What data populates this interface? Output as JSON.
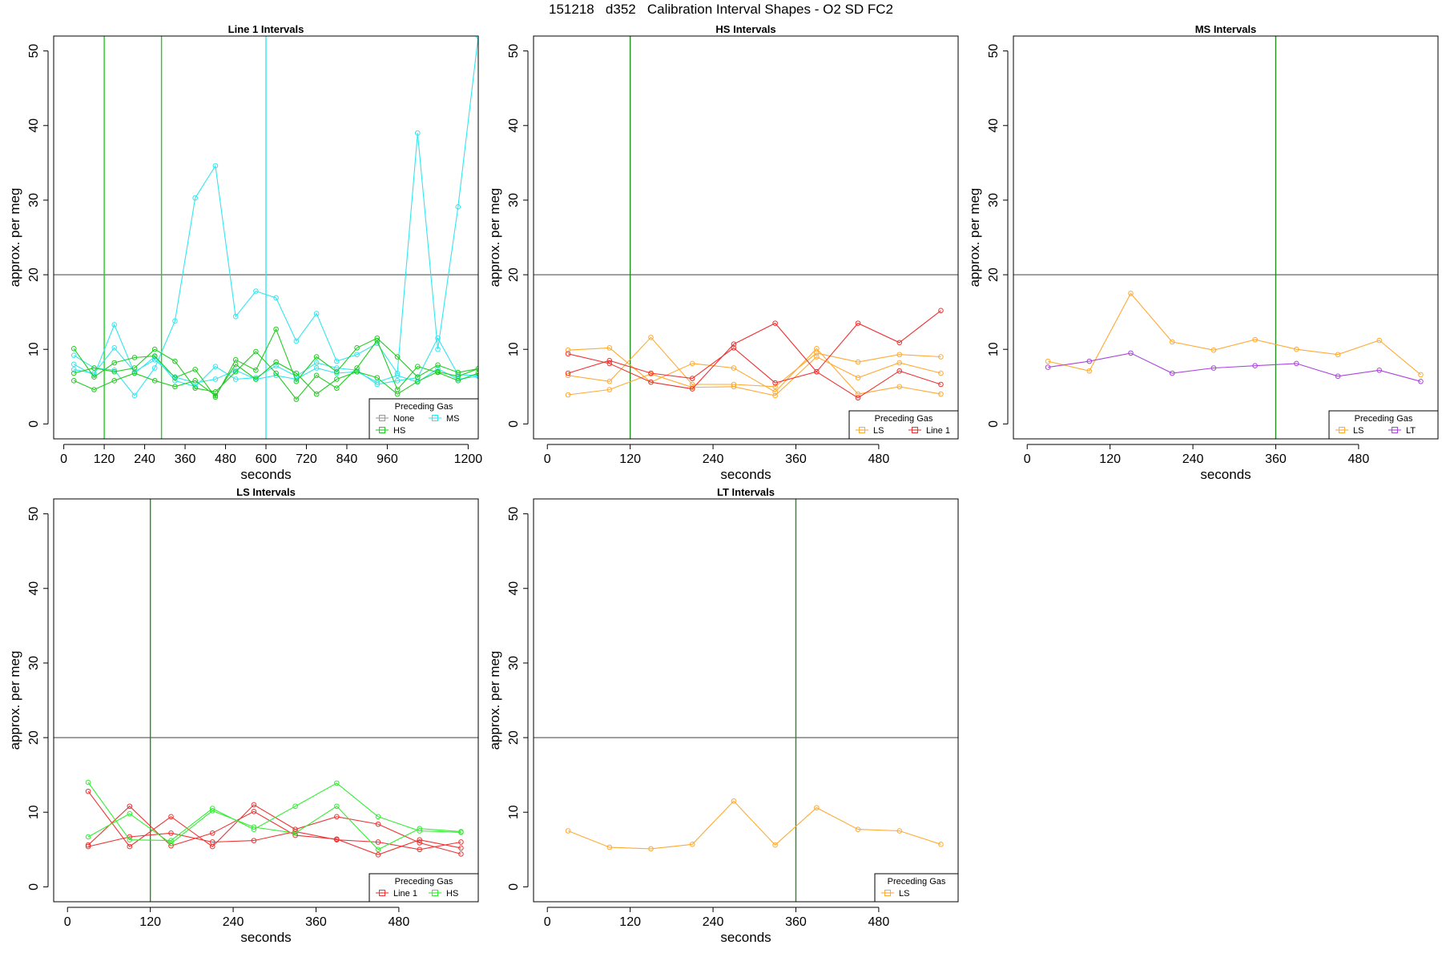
{
  "figure": {
    "title": "151218   d352   Calibration Interval Shapes - O2 SD FC2"
  },
  "chart_data": [
    {
      "type": "line",
      "title": "Line 1 Intervals",
      "xlabel": "seconds",
      "ylabel": "approx. per meg",
      "xlim": [
        -30,
        1230
      ],
      "ylim": [
        -2,
        52
      ],
      "xticks": [
        0,
        120,
        240,
        360,
        480,
        600,
        720,
        840,
        960,
        1200
      ],
      "yticks": [
        0,
        10,
        20,
        30,
        40,
        50
      ],
      "grid": false,
      "hline": 20,
      "vlines": [
        {
          "x": 120,
          "color": "#22cc22"
        },
        {
          "x": 290,
          "color": "#22cc22"
        },
        {
          "x": 600,
          "color": "#33e6ee"
        }
      ],
      "legend": {
        "title": "Preceding Gas",
        "position": "bottom-right",
        "entries": [
          {
            "label": "None",
            "color": "#999999"
          },
          {
            "label": "MS",
            "color": "#33e6ee"
          },
          {
            "label": "HS",
            "color": "#22cc22"
          }
        ]
      },
      "series": [
        {
          "color": "#33e6ee",
          "x": [
            30,
            90,
            150,
            210,
            270,
            330,
            390,
            450,
            510,
            570,
            630,
            690,
            750,
            810,
            870,
            930,
            990,
            1050,
            1110,
            1170,
            1230
          ],
          "y": [
            9.2,
            7.5,
            7.2,
            3.8,
            7.5,
            13.8,
            30.3,
            34.6,
            14.4,
            17.8,
            16.9,
            11.1,
            14.8,
            8.4,
            9.3,
            10.8,
            6.8,
            39.0,
            10.0,
            29.1,
            52.0
          ]
        },
        {
          "color": "#33e6ee",
          "x": [
            30,
            90,
            150,
            210,
            270,
            330,
            390,
            450,
            510,
            570,
            630,
            690,
            750,
            810,
            870,
            930,
            990,
            1050,
            1110,
            1170,
            1230
          ],
          "y": [
            8.0,
            6.5,
            13.3,
            6.8,
            9.0,
            5.8,
            5.0,
            7.7,
            6.0,
            6.2,
            7.8,
            6.4,
            8.2,
            7.5,
            7.2,
            5.3,
            5.8,
            6.2,
            11.5,
            6.6,
            6.5
          ]
        },
        {
          "color": "#33e6ee",
          "x": [
            30,
            90,
            150,
            210,
            270,
            330,
            390,
            450,
            510,
            570,
            630,
            690,
            750,
            810,
            870,
            930,
            990,
            1050,
            1110,
            1170,
            1230
          ],
          "y": [
            7.3,
            6.8,
            10.2,
            7.0,
            8.6,
            6.3,
            5.5,
            6.0,
            7.2,
            6.0,
            6.5,
            6.0,
            7.5,
            6.8,
            7.0,
            5.6,
            6.5,
            5.6,
            7.4,
            6.0,
            6.4
          ]
        },
        {
          "color": "#22cc22",
          "x": [
            30,
            90,
            150,
            210,
            270,
            330,
            390,
            450,
            510,
            570,
            630,
            690,
            750,
            810,
            870,
            930,
            990,
            1050,
            1110,
            1170,
            1230
          ],
          "y": [
            10.1,
            6.3,
            8.2,
            8.9,
            9.1,
            6.2,
            7.3,
            3.6,
            8.6,
            7.2,
            12.7,
            5.7,
            9.0,
            7.0,
            10.2,
            11.5,
            9.0,
            6.3,
            7.9,
            6.9,
            7.4
          ]
        },
        {
          "color": "#22cc22",
          "x": [
            30,
            90,
            150,
            210,
            270,
            330,
            390,
            450,
            510,
            570,
            630,
            690,
            750,
            810,
            870,
            930,
            990,
            1050,
            1110,
            1170,
            1230
          ],
          "y": [
            6.8,
            7.5,
            7.0,
            7.5,
            10.0,
            8.4,
            4.8,
            4.3,
            7.0,
            9.7,
            6.8,
            3.3,
            6.5,
            4.8,
            7.5,
            11.2,
            4.6,
            7.7,
            6.9,
            5.8,
            6.8
          ]
        },
        {
          "color": "#22cc22",
          "x": [
            30,
            90,
            150,
            210,
            270,
            330,
            390,
            450,
            510,
            570,
            630,
            690,
            750,
            810,
            870,
            930,
            990,
            1050,
            1110,
            1170,
            1230
          ],
          "y": [
            5.8,
            4.6,
            5.8,
            6.8,
            5.8,
            5.0,
            5.8,
            3.8,
            8.0,
            6.0,
            8.3,
            6.8,
            4.0,
            6.0,
            7.0,
            6.2,
            4.0,
            5.7,
            7.0,
            6.4,
            7.4
          ]
        }
      ]
    },
    {
      "type": "line",
      "title": "HS Intervals",
      "xlabel": "seconds",
      "ylabel": "approx. per meg",
      "xlim": [
        -20,
        595
      ],
      "ylim": [
        -2,
        52
      ],
      "xticks": [
        0,
        120,
        240,
        360,
        480
      ],
      "yticks": [
        0,
        10,
        20,
        30,
        40,
        50
      ],
      "grid": false,
      "hline": 20,
      "vlines": [
        {
          "x": 120,
          "color": "#228b22"
        }
      ],
      "legend": {
        "title": "Preceding Gas",
        "position": "bottom-right",
        "entries": [
          {
            "label": "LS",
            "color": "#ffaa33"
          },
          {
            "label": "Line 1",
            "color": "#ee3333"
          }
        ]
      },
      "series": [
        {
          "color": "#ffaa33",
          "x": [
            30,
            90,
            150,
            210,
            270,
            330,
            390,
            450,
            510,
            570
          ],
          "y": [
            9.9,
            10.2,
            5.6,
            8.1,
            7.5,
            4.3,
            10.1,
            4.0,
            5.0,
            4.0
          ]
        },
        {
          "color": "#ffaa33",
          "x": [
            30,
            90,
            150,
            210,
            270,
            330,
            390,
            450,
            510,
            570
          ],
          "y": [
            6.5,
            5.7,
            11.6,
            5.3,
            5.3,
            5.0,
            9.5,
            8.3,
            9.3,
            9.0
          ]
        },
        {
          "color": "#ffaa33",
          "x": [
            30,
            90,
            150,
            210,
            270,
            330,
            390,
            450,
            510,
            570
          ],
          "y": [
            3.9,
            4.6,
            6.7,
            4.9,
            5.0,
            3.8,
            9.0,
            6.2,
            8.2,
            6.8
          ]
        },
        {
          "color": "#ee3333",
          "x": [
            30,
            90,
            150,
            210,
            270,
            330,
            390,
            450,
            510,
            570
          ],
          "y": [
            9.4,
            8.1,
            5.6,
            4.7,
            10.7,
            13.5,
            7.0,
            13.5,
            10.9,
            15.2
          ]
        },
        {
          "color": "#ee3333",
          "x": [
            30,
            90,
            150,
            210,
            270,
            330,
            390,
            450,
            510,
            570
          ],
          "y": [
            6.8,
            8.5,
            6.8,
            6.1,
            10.2,
            5.5,
            7.0,
            3.5,
            7.1,
            5.3
          ]
        }
      ]
    },
    {
      "type": "line",
      "title": "MS Intervals",
      "xlabel": "seconds",
      "ylabel": "approx. per meg",
      "xlim": [
        -20,
        595
      ],
      "ylim": [
        -2,
        52
      ],
      "xticks": [
        0,
        120,
        240,
        360,
        480
      ],
      "yticks": [
        0,
        10,
        20,
        30,
        40,
        50
      ],
      "grid": false,
      "hline": 20,
      "vlines": [
        {
          "x": 360,
          "color": "#228b22"
        }
      ],
      "legend": {
        "title": "Preceding Gas",
        "position": "bottom-right",
        "entries": [
          {
            "label": "LS",
            "color": "#ffaa33"
          },
          {
            "label": "LT",
            "color": "#aa44dd"
          }
        ]
      },
      "series": [
        {
          "color": "#ffaa33",
          "x": [
            30,
            90,
            150,
            210,
            270,
            330,
            390,
            450,
            510,
            570
          ],
          "y": [
            8.4,
            7.1,
            17.5,
            11.0,
            9.9,
            11.3,
            10.0,
            9.3,
            11.2,
            6.6
          ]
        },
        {
          "color": "#aa44dd",
          "x": [
            30,
            90,
            150,
            210,
            270,
            330,
            390,
            450,
            510,
            570
          ],
          "y": [
            7.6,
            8.4,
            9.5,
            6.8,
            7.5,
            7.8,
            8.1,
            6.4,
            7.2,
            5.7
          ]
        }
      ]
    },
    {
      "type": "line",
      "title": "LS Intervals",
      "xlabel": "seconds",
      "ylabel": "approx. per meg",
      "xlim": [
        -20,
        595
      ],
      "ylim": [
        -2,
        52
      ],
      "xticks": [
        0,
        120,
        240,
        360,
        480
      ],
      "yticks": [
        0,
        10,
        20,
        30,
        40,
        50
      ],
      "grid": false,
      "hline": 20,
      "vlines": [
        {
          "x": 120,
          "color": "#228b22"
        }
      ],
      "legend": {
        "title": "Preceding Gas",
        "position": "bottom-right",
        "entries": [
          {
            "label": "Line 1",
            "color": "#ee3333"
          },
          {
            "label": "HS",
            "color": "#33ee33"
          }
        ]
      },
      "series": [
        {
          "color": "#ee3333",
          "x": [
            30,
            90,
            150,
            210,
            270,
            330,
            390,
            450,
            510,
            570
          ],
          "y": [
            12.8,
            5.4,
            9.4,
            5.4,
            11.0,
            7.7,
            9.4,
            8.4,
            5.9,
            4.4
          ]
        },
        {
          "color": "#ee3333",
          "x": [
            30,
            90,
            150,
            210,
            270,
            330,
            390,
            450,
            510,
            570
          ],
          "y": [
            5.6,
            10.8,
            5.5,
            7.2,
            10.1,
            6.9,
            6.4,
            4.3,
            6.3,
            5.2
          ]
        },
        {
          "color": "#ee3333",
          "x": [
            30,
            90,
            150,
            210,
            270,
            330,
            390,
            450,
            510,
            570
          ],
          "y": [
            5.4,
            6.7,
            7.2,
            6.0,
            6.2,
            7.4,
            6.3,
            6.0,
            5.0,
            6.0
          ]
        },
        {
          "color": "#33ee33",
          "x": [
            30,
            90,
            150,
            210,
            270,
            330,
            390,
            450,
            510,
            570
          ],
          "y": [
            14.0,
            6.3,
            6.2,
            10.5,
            7.7,
            10.8,
            13.9,
            9.4,
            7.5,
            7.3
          ]
        },
        {
          "color": "#33ee33",
          "x": [
            30,
            90,
            150,
            210,
            270,
            330,
            390,
            450,
            510,
            570
          ],
          "y": [
            6.7,
            9.8,
            5.8,
            10.2,
            8.0,
            7.2,
            10.8,
            5.0,
            7.8,
            7.4
          ]
        }
      ]
    },
    {
      "type": "line",
      "title": "LT Intervals",
      "xlabel": "seconds",
      "ylabel": "approx. per meg",
      "xlim": [
        -20,
        595
      ],
      "ylim": [
        -2,
        52
      ],
      "xticks": [
        0,
        120,
        240,
        360,
        480
      ],
      "yticks": [
        0,
        10,
        20,
        30,
        40,
        50
      ],
      "grid": false,
      "hline": 20,
      "vlines": [
        {
          "x": 360,
          "color": "#228b22"
        }
      ],
      "legend": {
        "title": "Preceding Gas",
        "position": "bottom-right",
        "entries": [
          {
            "label": "LS",
            "color": "#ffaa33"
          }
        ]
      },
      "series": [
        {
          "color": "#ffaa33",
          "x": [
            30,
            90,
            150,
            210,
            270,
            330,
            390,
            450,
            510,
            570
          ],
          "y": [
            7.5,
            5.3,
            5.1,
            5.7,
            11.5,
            5.6,
            10.6,
            7.7,
            7.5,
            5.7
          ]
        }
      ]
    }
  ]
}
